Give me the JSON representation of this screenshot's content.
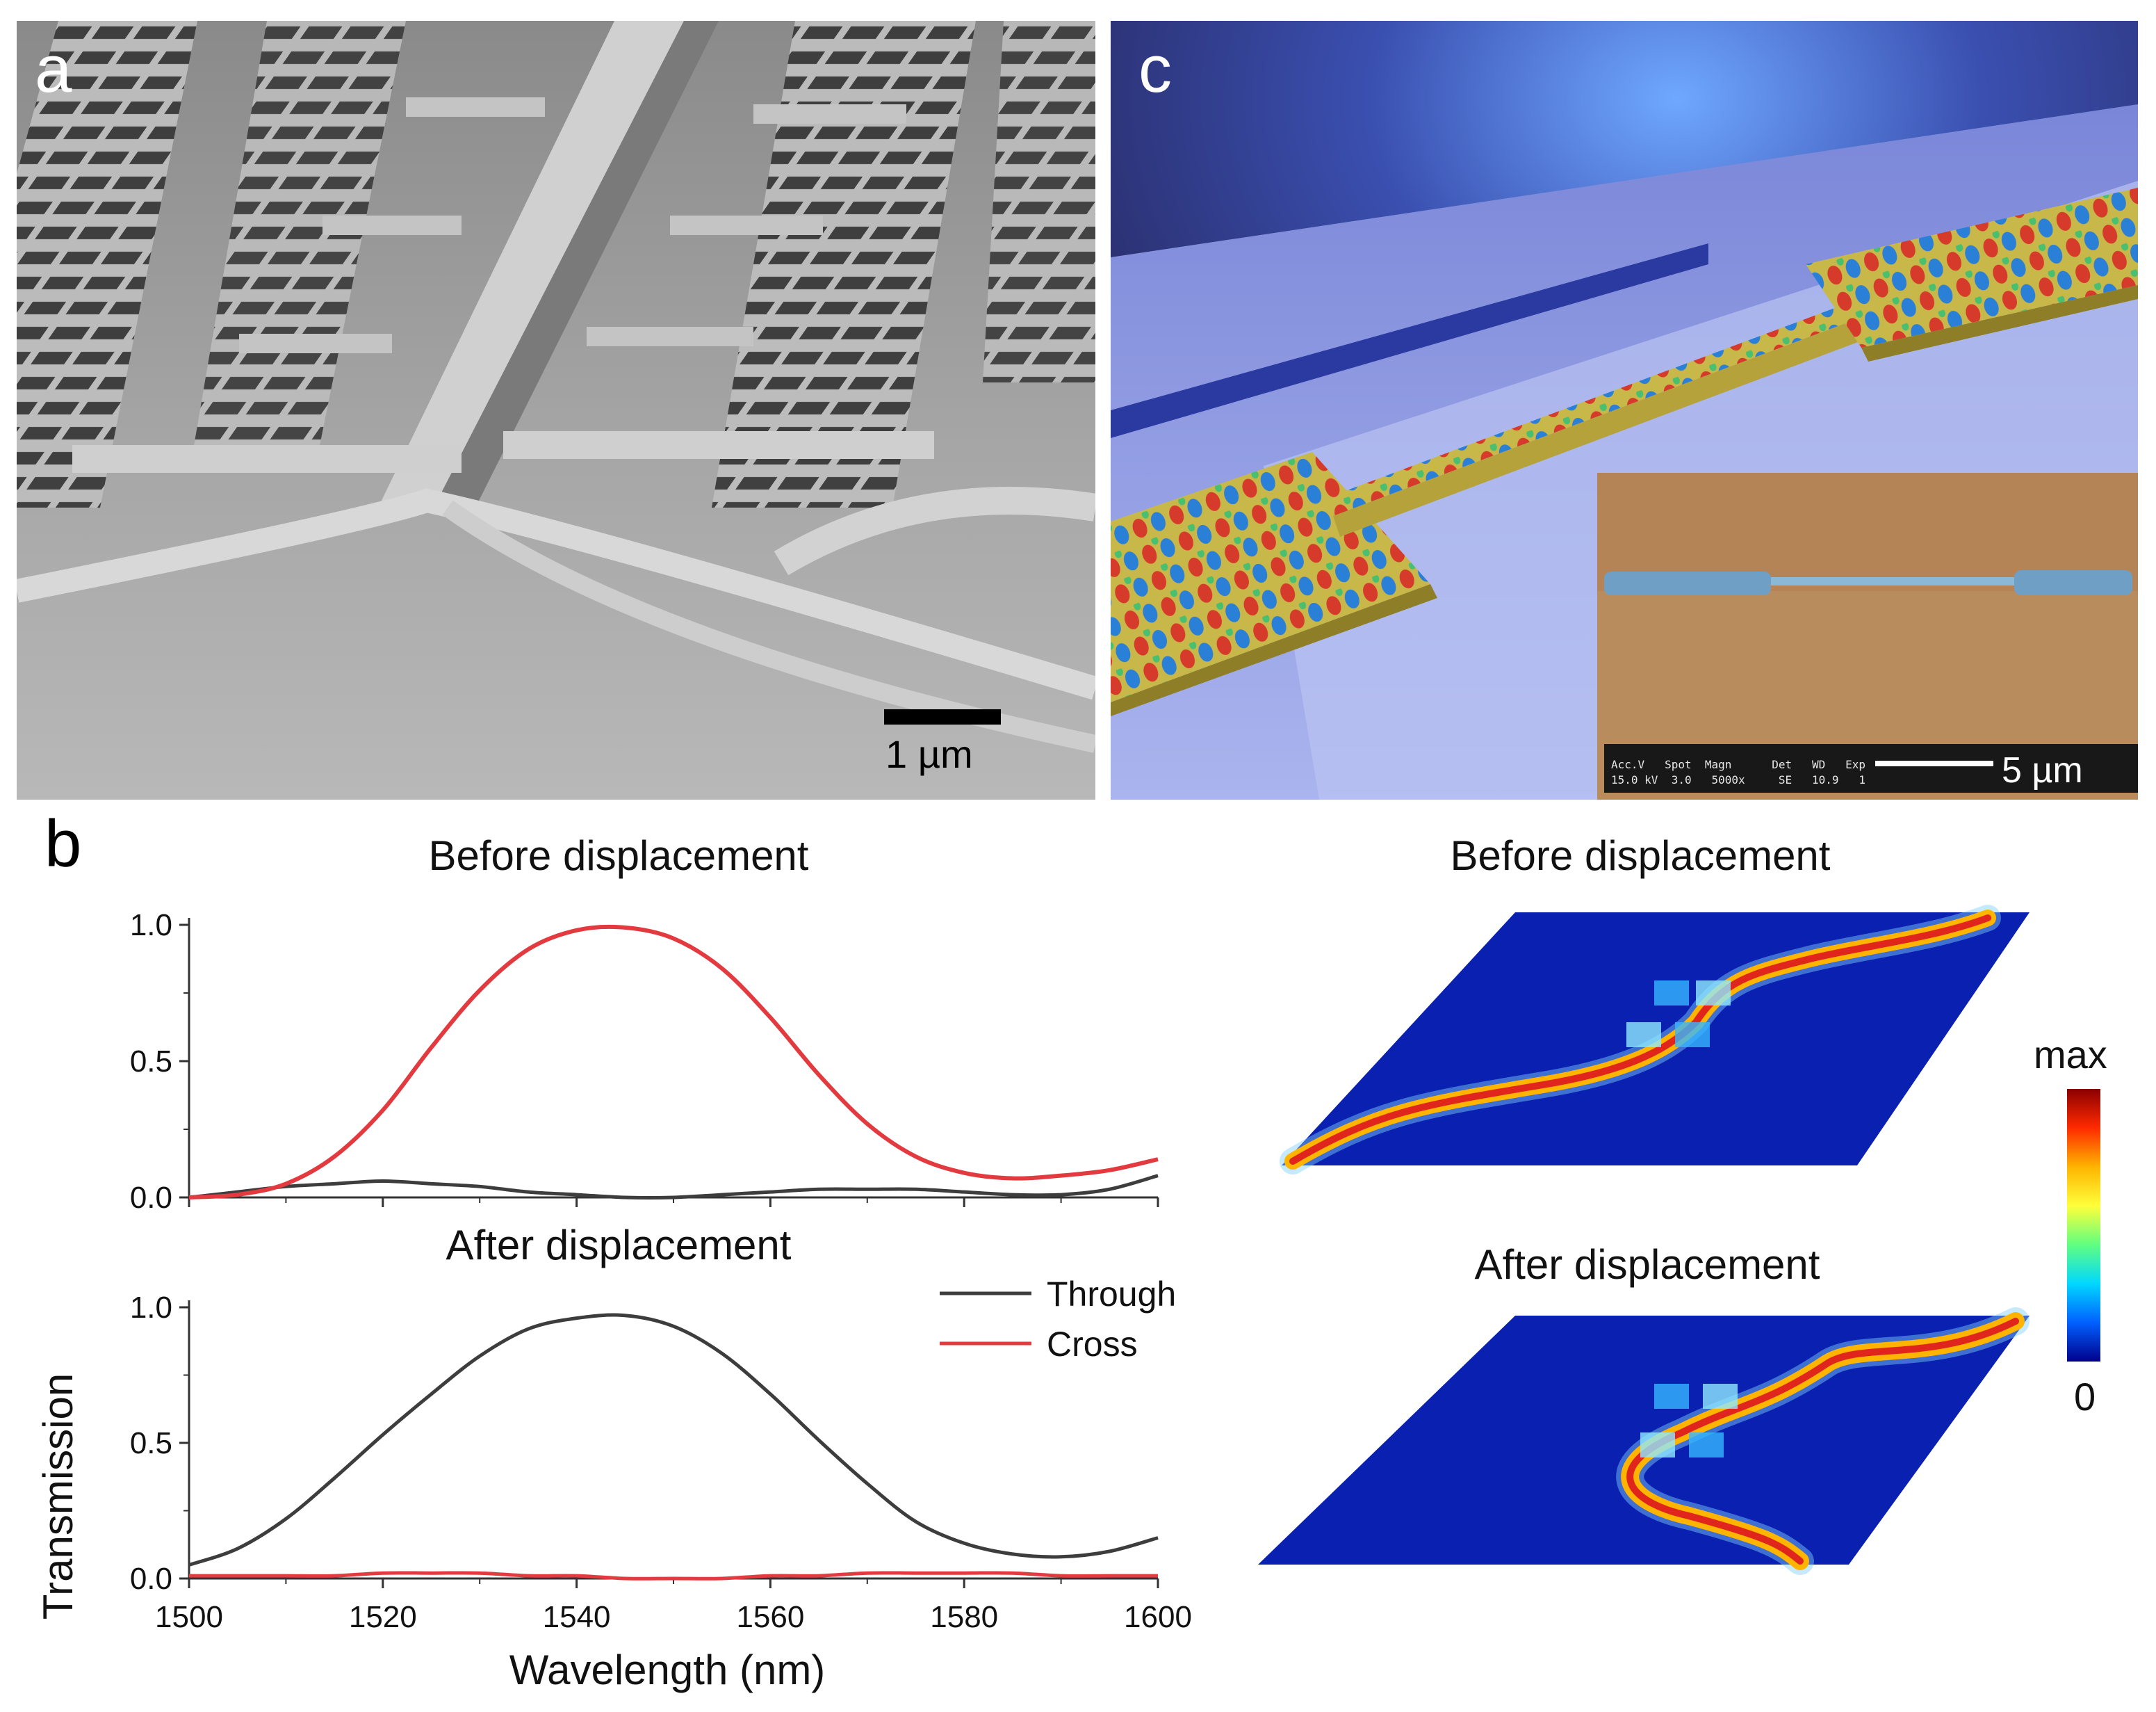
{
  "panels": {
    "a": {
      "letter": "a",
      "scalebar_label": "1 µm"
    },
    "c": {
      "letter": "c",
      "inset": {
        "info_headers": "Acc.V   Spot  Magn      Det   WD   Exp",
        "info_values": "15.0 kV  3.0   5000x     SE   10.9   1",
        "scalebar_label": "5 µm"
      }
    },
    "b": {
      "letter": "b",
      "field_maps": {
        "before_title": "Before displacement",
        "after_title": "After displacement",
        "colorbar_max": "max",
        "colorbar_min": "0"
      }
    }
  },
  "colors": {
    "through": "#3d3d3d",
    "cross": "#e23a3f",
    "field_background": "#0a20b0"
  },
  "chart_data": [
    {
      "type": "line",
      "title": "Before displacement",
      "xlabel": "Wavelength (nm)",
      "ylabel": "Transmission",
      "xlim": [
        1500,
        1600
      ],
      "ylim": [
        0,
        1.0
      ],
      "xticks": [
        "1500",
        "1520",
        "1540",
        "1560",
        "1580",
        "1600"
      ],
      "yticks": [
        "0.0",
        "0.5",
        "1.0"
      ],
      "grid": false,
      "x": [
        1500,
        1505,
        1510,
        1515,
        1520,
        1525,
        1530,
        1535,
        1540,
        1545,
        1550,
        1555,
        1560,
        1565,
        1570,
        1575,
        1580,
        1585,
        1590,
        1595,
        1600
      ],
      "series": [
        {
          "name": "Through",
          "values": [
            0.0,
            0.02,
            0.04,
            0.05,
            0.06,
            0.05,
            0.04,
            0.02,
            0.01,
            0.0,
            0.0,
            0.01,
            0.02,
            0.03,
            0.03,
            0.03,
            0.02,
            0.01,
            0.01,
            0.03,
            0.08
          ]
        },
        {
          "name": "Cross",
          "values": [
            0.0,
            0.01,
            0.05,
            0.15,
            0.32,
            0.55,
            0.76,
            0.91,
            0.98,
            0.99,
            0.95,
            0.84,
            0.66,
            0.45,
            0.27,
            0.15,
            0.09,
            0.07,
            0.08,
            0.1,
            0.14
          ]
        }
      ]
    },
    {
      "type": "line",
      "title": "After displacement",
      "xlabel": "Wavelength (nm)",
      "ylabel": "Transmission",
      "xlim": [
        1500,
        1600
      ],
      "ylim": [
        0,
        1.0
      ],
      "xticks": [
        "1500",
        "1520",
        "1540",
        "1560",
        "1580",
        "1600"
      ],
      "yticks": [
        "0.0",
        "0.5",
        "1.0"
      ],
      "grid": false,
      "legend": "right",
      "x": [
        1500,
        1505,
        1510,
        1515,
        1520,
        1525,
        1530,
        1535,
        1540,
        1545,
        1550,
        1555,
        1560,
        1565,
        1570,
        1575,
        1580,
        1585,
        1590,
        1595,
        1600
      ],
      "series": [
        {
          "name": "Through",
          "values": [
            0.05,
            0.11,
            0.22,
            0.37,
            0.53,
            0.68,
            0.82,
            0.92,
            0.96,
            0.97,
            0.93,
            0.83,
            0.68,
            0.51,
            0.35,
            0.21,
            0.13,
            0.09,
            0.08,
            0.1,
            0.15
          ]
        },
        {
          "name": "Cross",
          "values": [
            0.01,
            0.01,
            0.01,
            0.01,
            0.02,
            0.02,
            0.02,
            0.01,
            0.01,
            0.0,
            0.0,
            0.0,
            0.01,
            0.01,
            0.02,
            0.02,
            0.02,
            0.02,
            0.01,
            0.01,
            0.01
          ]
        }
      ]
    }
  ]
}
